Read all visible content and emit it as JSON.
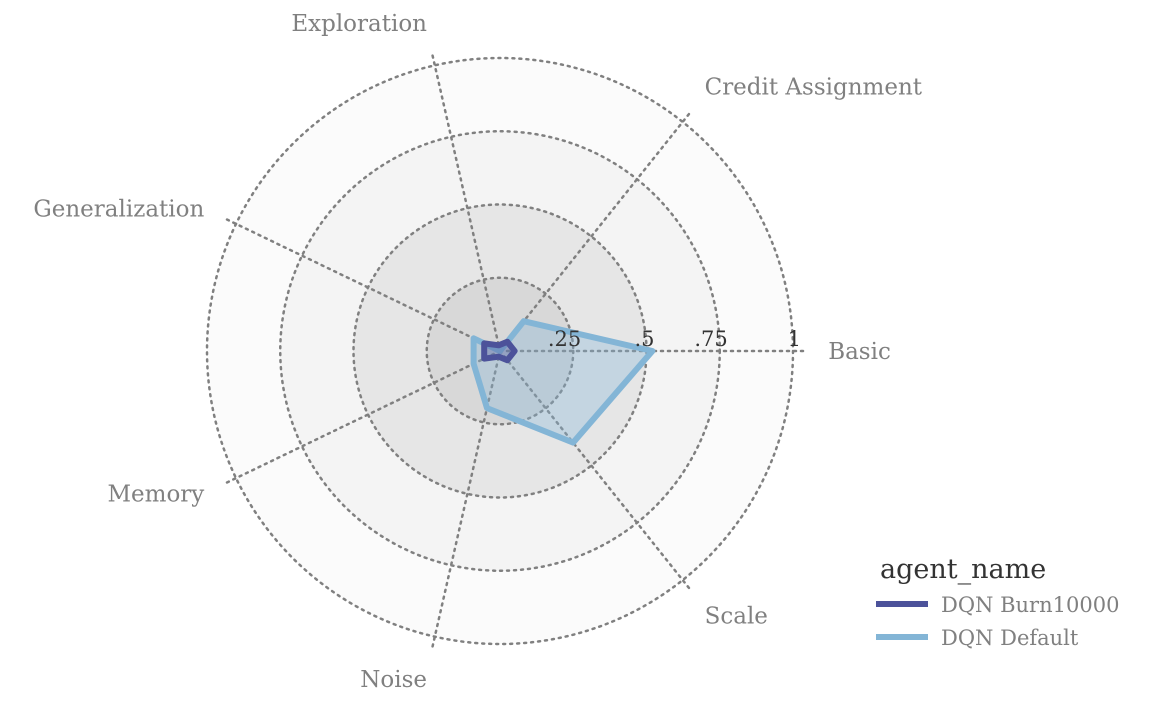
{
  "chart_data": {
    "type": "radar",
    "title": "",
    "categories": [
      "Basic",
      "Credit Assignment",
      "Exploration",
      "Generalization",
      "Memory",
      "Noise",
      "Scale"
    ],
    "radial_ticks": [
      0.25,
      0.5,
      0.75,
      1.0
    ],
    "radial_tick_labels": [
      ".25",
      ".5",
      ".75",
      "1"
    ],
    "rlim": [
      0,
      1
    ],
    "grid": true,
    "series": [
      {
        "name": "DQN Burn10000",
        "color": "#4c529a",
        "values": [
          0.05,
          0.04,
          0.02,
          0.06,
          0.06,
          0.02,
          0.04
        ]
      },
      {
        "name": "DQN Default",
        "color": "#83b5d6",
        "values": [
          0.52,
          0.13,
          0.0,
          0.1,
          0.1,
          0.2,
          0.4
        ]
      }
    ],
    "legend": {
      "title": "agent_name",
      "placement": "bottom-right"
    },
    "colors": {
      "ring_fills": [
        "#d8d8d8",
        "#e6e6e6",
        "#f4f4f4",
        "#fbfbfb"
      ],
      "grid": "#808080",
      "series_fill_alpha": 0.35
    }
  }
}
